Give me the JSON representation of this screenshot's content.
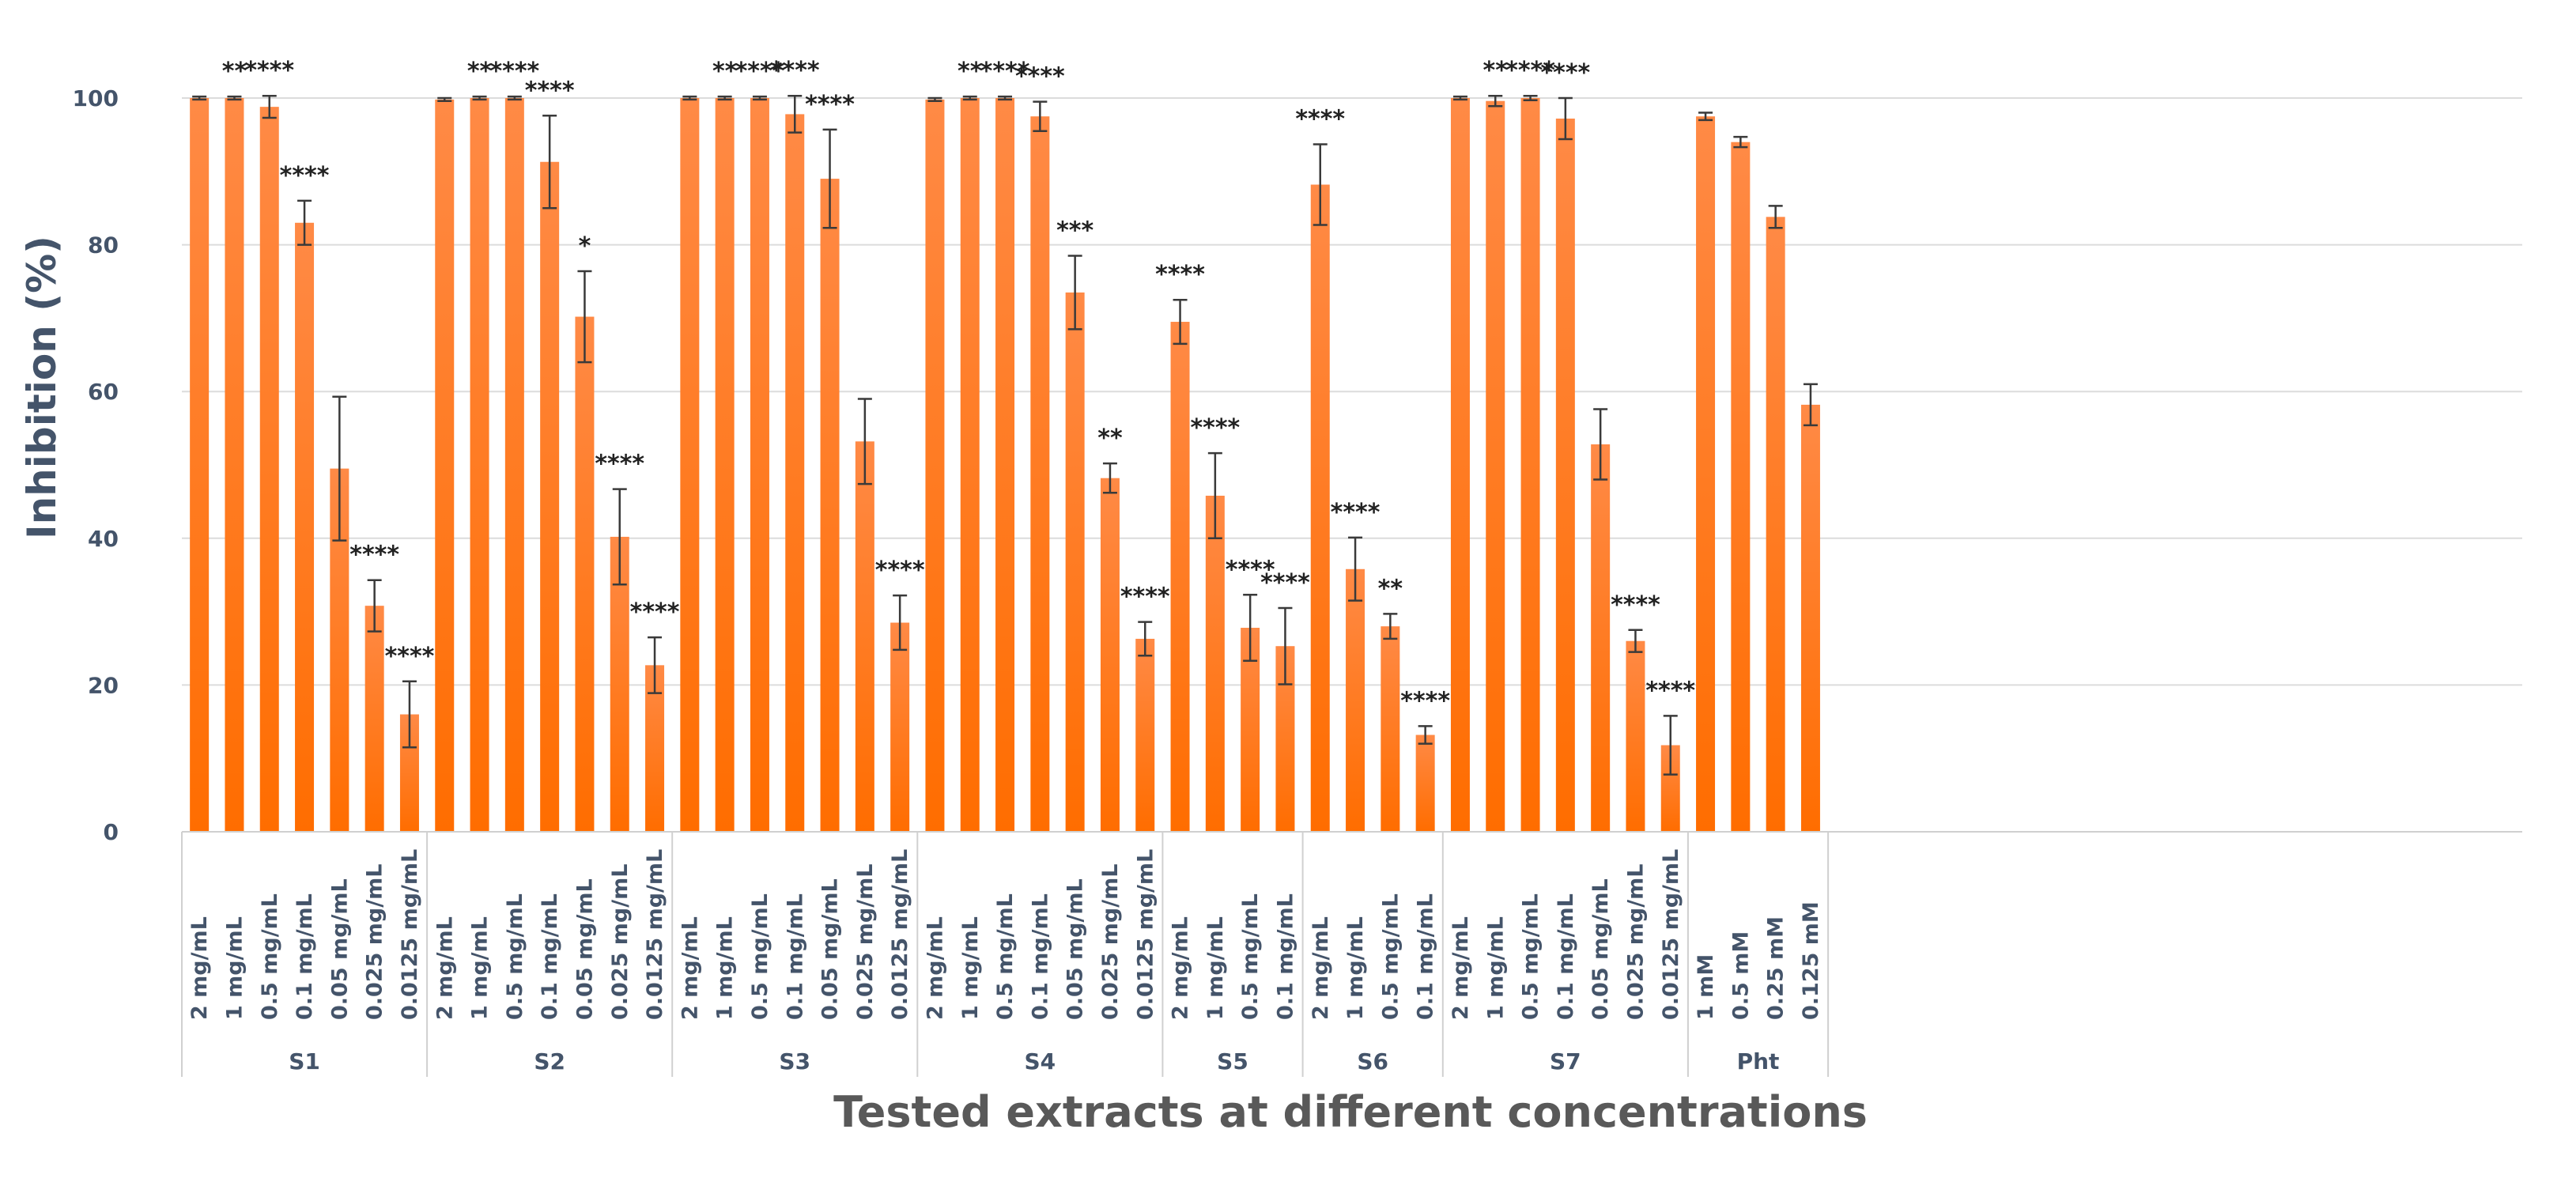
{
  "chart_data": {
    "type": "bar",
    "title": "",
    "ylabel": "Inhibition (%)",
    "xlabel": "Tested extracts at different concentrations",
    "ylim": [
      0,
      100
    ],
    "yticks": [
      0,
      20,
      40,
      60,
      80,
      100
    ],
    "grid": true,
    "bar_color": "#ff7a1a",
    "groups": [
      {
        "name": "S1",
        "bars": [
          {
            "label": "2 mg/mL",
            "value": 100,
            "error": 0.2,
            "sig": ""
          },
          {
            "label": "1 mg/mL",
            "value": 100,
            "error": 0.2,
            "sig": "**"
          },
          {
            "label": "0.5 mg/mL",
            "value": 98.8,
            "error": 1.5,
            "sig": "****"
          },
          {
            "label": "0.1 mg/mL",
            "value": 83,
            "error": 3,
            "sig": "****"
          },
          {
            "label": "0.05 mg/mL",
            "value": 49.5,
            "error": 9.8,
            "sig": ""
          },
          {
            "label": "0.025 mg/mL",
            "value": 30.8,
            "error": 3.5,
            "sig": "****"
          },
          {
            "label": "0.0125 mg/mL",
            "value": 16,
            "error": 4.5,
            "sig": "****"
          }
        ]
      },
      {
        "name": "S2",
        "bars": [
          {
            "label": "2 mg/mL",
            "value": 99.8,
            "error": 0.2,
            "sig": ""
          },
          {
            "label": "1 mg/mL",
            "value": 100,
            "error": 0.2,
            "sig": "**"
          },
          {
            "label": "0.5 mg/mL",
            "value": 100,
            "error": 0.2,
            "sig": "****"
          },
          {
            "label": "0.1 mg/mL",
            "value": 91.3,
            "error": 6.3,
            "sig": "****"
          },
          {
            "label": "0.05 mg/mL",
            "value": 70.2,
            "error": 6.2,
            "sig": "*"
          },
          {
            "label": "0.025 mg/mL",
            "value": 40.2,
            "error": 6.5,
            "sig": "****"
          },
          {
            "label": "0.0125 mg/mL",
            "value": 22.7,
            "error": 3.8,
            "sig": "****"
          }
        ]
      },
      {
        "name": "S3",
        "bars": [
          {
            "label": "2 mg/mL",
            "value": 100,
            "error": 0.2,
            "sig": ""
          },
          {
            "label": "1 mg/mL",
            "value": 100,
            "error": 0.2,
            "sig": "**"
          },
          {
            "label": "0.5 mg/mL",
            "value": 100,
            "error": 0.2,
            "sig": "****"
          },
          {
            "label": "0.1 mg/mL",
            "value": 97.8,
            "error": 2.5,
            "sig": "****"
          },
          {
            "label": "0.05 mg/mL",
            "value": 89,
            "error": 6.7,
            "sig": "****"
          },
          {
            "label": "0.025 mg/mL",
            "value": 53.2,
            "error": 5.8,
            "sig": ""
          },
          {
            "label": "0.0125 mg/mL",
            "value": 28.5,
            "error": 3.7,
            "sig": "****"
          }
        ]
      },
      {
        "name": "S4",
        "bars": [
          {
            "label": "2 mg/mL",
            "value": 99.8,
            "error": 0.2,
            "sig": ""
          },
          {
            "label": "1 mg/mL",
            "value": 100,
            "error": 0.2,
            "sig": "**"
          },
          {
            "label": "0.5 mg/mL",
            "value": 100,
            "error": 0.2,
            "sig": "****"
          },
          {
            "label": "0.1 mg/mL",
            "value": 97.5,
            "error": 2,
            "sig": "****"
          },
          {
            "label": "0.05 mg/mL",
            "value": 73.5,
            "error": 5,
            "sig": "***"
          },
          {
            "label": "0.025 mg/mL",
            "value": 48.2,
            "error": 2,
            "sig": "**"
          },
          {
            "label": "0.0125 mg/mL",
            "value": 26.3,
            "error": 2.3,
            "sig": "****"
          }
        ]
      },
      {
        "name": "S5",
        "bars": [
          {
            "label": "2 mg/mL",
            "value": 69.5,
            "error": 3,
            "sig": "****"
          },
          {
            "label": "1 mg/mL",
            "value": 45.8,
            "error": 5.8,
            "sig": "****"
          },
          {
            "label": "0.5 mg/mL",
            "value": 27.8,
            "error": 4.5,
            "sig": "****"
          },
          {
            "label": "0.1 mg/mL",
            "value": 25.3,
            "error": 5.2,
            "sig": "****"
          }
        ]
      },
      {
        "name": "S6",
        "bars": [
          {
            "label": "2 mg/mL",
            "value": 88.2,
            "error": 5.5,
            "sig": "****"
          },
          {
            "label": "1 mg/mL",
            "value": 35.8,
            "error": 4.3,
            "sig": "****"
          },
          {
            "label": "0.5 mg/mL",
            "value": 28,
            "error": 1.7,
            "sig": "**"
          },
          {
            "label": "0.1 mg/mL",
            "value": 13.2,
            "error": 1.2,
            "sig": "****"
          }
        ]
      },
      {
        "name": "S7",
        "bars": [
          {
            "label": "2 mg/mL",
            "value": 100,
            "error": 0.2,
            "sig": ""
          },
          {
            "label": "1 mg/mL",
            "value": 99.6,
            "error": 0.7,
            "sig": "**"
          },
          {
            "label": "0.5 mg/mL",
            "value": 100,
            "error": 0.3,
            "sig": "****"
          },
          {
            "label": "0.1 mg/mL",
            "value": 97.2,
            "error": 2.8,
            "sig": "****"
          },
          {
            "label": "0.05 mg/mL",
            "value": 52.8,
            "error": 4.8,
            "sig": ""
          },
          {
            "label": "0.025 mg/mL",
            "value": 26,
            "error": 1.5,
            "sig": "****"
          },
          {
            "label": "0.0125 mg/mL",
            "value": 11.8,
            "error": 4,
            "sig": "****"
          }
        ]
      },
      {
        "name": "Pht",
        "bars": [
          {
            "label": "1 mM",
            "value": 97.5,
            "error": 0.5,
            "sig": ""
          },
          {
            "label": "0.5 mM",
            "value": 94,
            "error": 0.7,
            "sig": ""
          },
          {
            "label": "0.25 mM",
            "value": 83.8,
            "error": 1.5,
            "sig": ""
          },
          {
            "label": "0.125 mM",
            "value": 58.2,
            "error": 2.8,
            "sig": ""
          }
        ]
      }
    ]
  }
}
